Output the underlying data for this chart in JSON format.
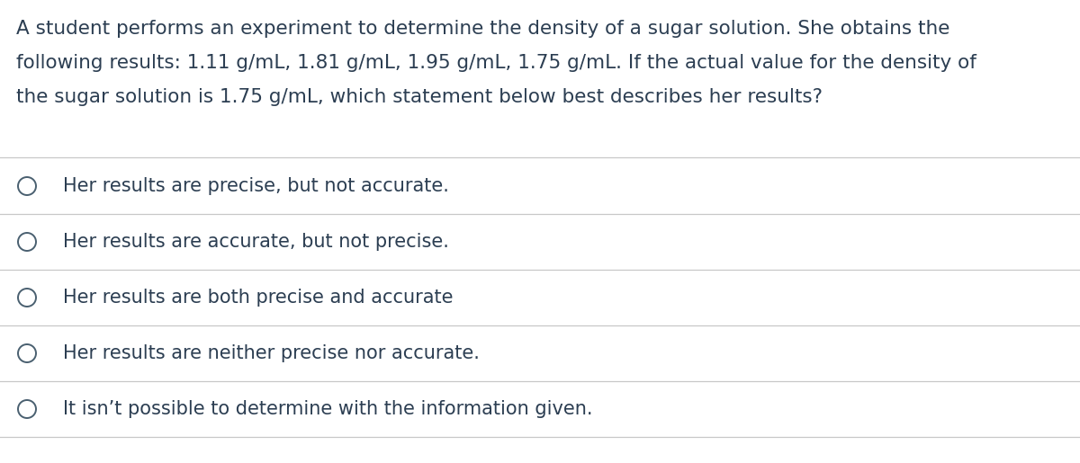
{
  "background_color": "#ffffff",
  "text_color": "#2c3e52",
  "question_lines": [
    "A student performs an experiment to determine the density of a sugar solution. She obtains the",
    "following results: 1.11 g/mL, 1.81 g/mL, 1.95 g/mL, 1.75 g/mL. If the actual value for the density of",
    "the sugar solution is 1.75 g/mL, which statement below best describes her results?"
  ],
  "options": [
    "Her results are precise, but not accurate.",
    "Her results are accurate, but not precise.",
    "Her results are both precise and accurate",
    "Her results are neither precise nor accurate.",
    "It isn’t possible to determine with the information given."
  ],
  "question_fontsize": 15.5,
  "option_fontsize": 15.0,
  "line_color": "#c8c8c8",
  "circle_linewidth": 1.4,
  "circle_edge_color": "#4a6070",
  "circle_face_color": "#ffffff"
}
